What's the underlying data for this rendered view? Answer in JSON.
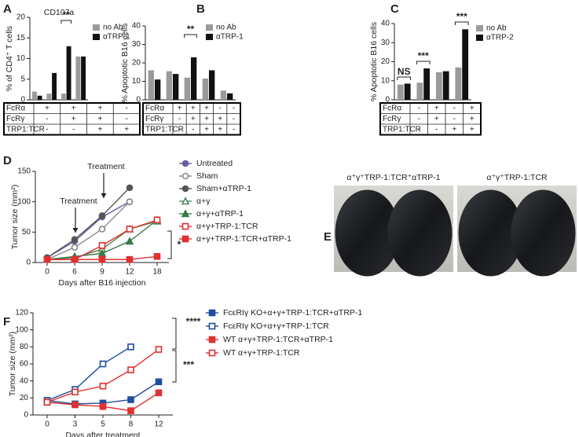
{
  "chart_data": [
    {
      "type": "bar",
      "panel_label": "A",
      "title": "CD107a",
      "y_label": "% of CD4⁺ T cells",
      "ylim": [
        0,
        20
      ],
      "yticks": [
        0,
        5,
        10,
        15,
        20
      ],
      "series": [
        {
          "name": "no Ab",
          "color": "#9a9a9a",
          "values": [
            2,
            1.5,
            1.5,
            10.5
          ]
        },
        {
          "name": "αTRP-1",
          "color": "#111111",
          "values": [
            1,
            6.5,
            13,
            10.5
          ]
        }
      ],
      "annotations": [
        "**"
      ],
      "table": {
        "rows": [
          {
            "label": "FcRα",
            "values": [
              "+",
              "+",
              "+",
              "-"
            ]
          },
          {
            "label": "FcRγ",
            "values": [
              "-",
              "+",
              "+",
              "-"
            ]
          },
          {
            "label": "TRP1:TCR",
            "values": [
              "-",
              "-",
              "+",
              "+"
            ]
          }
        ]
      }
    },
    {
      "type": "bar",
      "panel_label": "B",
      "y_label": "% Apoptotic B16 cells",
      "ylim": [
        0,
        40
      ],
      "yticks": [
        0,
        10,
        20,
        30,
        40
      ],
      "series": [
        {
          "name": "no Ab",
          "color": "#9a9a9a",
          "values": [
            16,
            15.5,
            12,
            11.5,
            5
          ]
        },
        {
          "name": "αTRP-1",
          "color": "#111111",
          "values": [
            11,
            14,
            23,
            16,
            3.5
          ]
        }
      ],
      "annotations": [
        "**"
      ],
      "table": {
        "rows": [
          {
            "label": "FcRα",
            "values": [
              "+",
              "+",
              "+",
              "-",
              "-"
            ]
          },
          {
            "label": "FcRγ",
            "values": [
              "-",
              "+",
              "+",
              "+",
              "-"
            ]
          },
          {
            "label": "TRP1:TCR",
            "values": [
              "-",
              "-",
              "+",
              "+",
              "-"
            ]
          }
        ]
      }
    },
    {
      "type": "bar",
      "panel_label": "C",
      "y_label": "% Apoptotic B16 cells",
      "ylim": [
        0,
        40
      ],
      "yticks": [
        0,
        10,
        20,
        30,
        40
      ],
      "series": [
        {
          "name": "no Ab",
          "color": "#9a9a9a",
          "values": [
            8,
            9,
            14.5,
            17
          ]
        },
        {
          "name": "αTRP-2",
          "color": "#111111",
          "values": [
            8.5,
            16.5,
            15,
            37
          ]
        }
      ],
      "annotations": [
        "NS",
        "***",
        "***"
      ],
      "table": {
        "rows": [
          {
            "label": "FcRα",
            "values": [
              "-",
              "+",
              "-",
              "+"
            ]
          },
          {
            "label": "FcRγ",
            "values": [
              "-",
              "+",
              "-",
              "+"
            ]
          },
          {
            "label": "TRP1:TCR",
            "values": [
              "-",
              "-",
              "+",
              "+"
            ]
          }
        ]
      }
    },
    {
      "type": "line",
      "panel_label": "D",
      "x_label": "Days after B16 injection",
      "y_label": "Tumor size (mm²)",
      "categories": [
        "0",
        "6",
        "9",
        "12",
        "18"
      ],
      "ylim": [
        0,
        150
      ],
      "yticks": [
        0,
        50,
        100,
        150
      ],
      "series": [
        {
          "name": "Untreated",
          "color": "#6a5a9e",
          "marker": "circle",
          "filled": true,
          "values": [
            8,
            35,
            75,
            100,
            null
          ]
        },
        {
          "name": "Sham",
          "color": "#888888",
          "marker": "circle",
          "filled": false,
          "values": [
            5,
            25,
            55,
            100,
            null
          ]
        },
        {
          "name": "Sham+αTRP-1",
          "color": "#555555",
          "marker": "circle",
          "filled": true,
          "values": [
            8,
            38,
            77,
            123,
            null
          ]
        },
        {
          "name": "α+γ",
          "color": "#4f8a5b",
          "marker": "triangle",
          "filled": false,
          "values": [
            5,
            8,
            22,
            55,
            68
          ]
        },
        {
          "name": "α+γ+αTRP-1",
          "color": "#3a7a4a",
          "marker": "triangle",
          "filled": true,
          "values": [
            5,
            10,
            15,
            35,
            70
          ]
        },
        {
          "name": "α+γ+TRP-1:TCR",
          "color": "#e03030",
          "marker": "square",
          "filled": false,
          "values": [
            5,
            5,
            28,
            55,
            70
          ]
        },
        {
          "name": "α+γ+TRP-1:TCR+αTRP-1",
          "color": "#e03030",
          "marker": "square",
          "filled": true,
          "values": [
            5,
            5,
            5,
            5,
            10
          ]
        }
      ],
      "annotations": [
        "Treatment",
        "Treatment",
        "*"
      ]
    },
    {
      "type": "image",
      "panel_label": "E",
      "captions": [
        "α⁺γ⁺TRP-1:TCR⁺αTRP-1",
        "α⁺γ⁺TRP-1:TCR"
      ]
    },
    {
      "type": "line",
      "panel_label": "F",
      "x_label": "Days after treatment",
      "y_label": "Tumor size (mm²)",
      "categories": [
        "0",
        "3",
        "5",
        "8",
        "12"
      ],
      "ylim": [
        0,
        120
      ],
      "yticks": [
        0,
        20,
        40,
        60,
        80,
        100,
        120
      ],
      "series": [
        {
          "name": "FcεRIγ KO+α+γ+TRP-1:TCR+αTRP-1",
          "color": "#1f4e9e",
          "marker": "square",
          "filled": true,
          "values": [
            17,
            13,
            14,
            18,
            39
          ]
        },
        {
          "name": "FcεRIγ KO+α+γ+TRP-1:TCR",
          "color": "#1f4e9e",
          "marker": "square",
          "filled": false,
          "values": [
            17,
            30,
            60,
            80,
            null
          ]
        },
        {
          "name": "WT α+γ+TRP-1:TCR+αTRP-1",
          "color": "#e03030",
          "marker": "square",
          "filled": true,
          "values": [
            15,
            12,
            10,
            5,
            26
          ]
        },
        {
          "name": "WT α+γ+TRP-1:TCR",
          "color": "#e03030",
          "marker": "square",
          "filled": false,
          "values": [
            15,
            27,
            34,
            53,
            77
          ]
        }
      ],
      "annotations": [
        "****",
        "***"
      ]
    }
  ]
}
